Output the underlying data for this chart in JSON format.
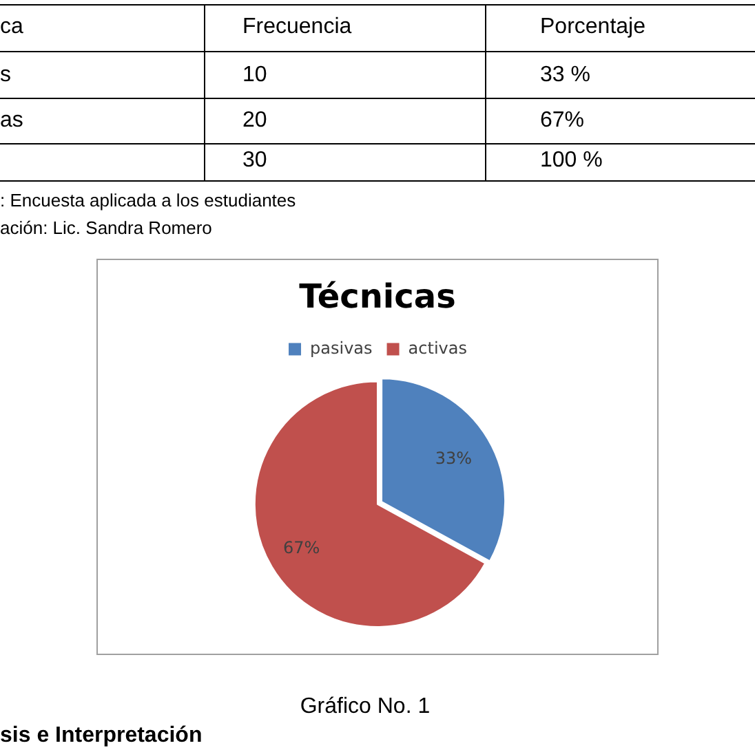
{
  "chart_data": {
    "type": "pie",
    "title": "Técnicas",
    "categories": [
      "pasivas",
      "activas"
    ],
    "values": [
      33,
      67
    ],
    "colors": [
      "#4f81bd",
      "#c0504d"
    ],
    "value_labels": [
      "33%",
      "67%"
    ],
    "legend": "top",
    "annotations": [
      "ca",
      "Frecuencia",
      "Porcentaje",
      "s",
      "10",
      "33 %",
      "as",
      "20",
      "67%",
      "30",
      "100 %",
      ":  Encuesta aplicada a los estudiantes",
      "ación:  Lic. Sandra Romero",
      "Gráfico No. 1",
      "sis e Interpretación"
    ]
  }
}
